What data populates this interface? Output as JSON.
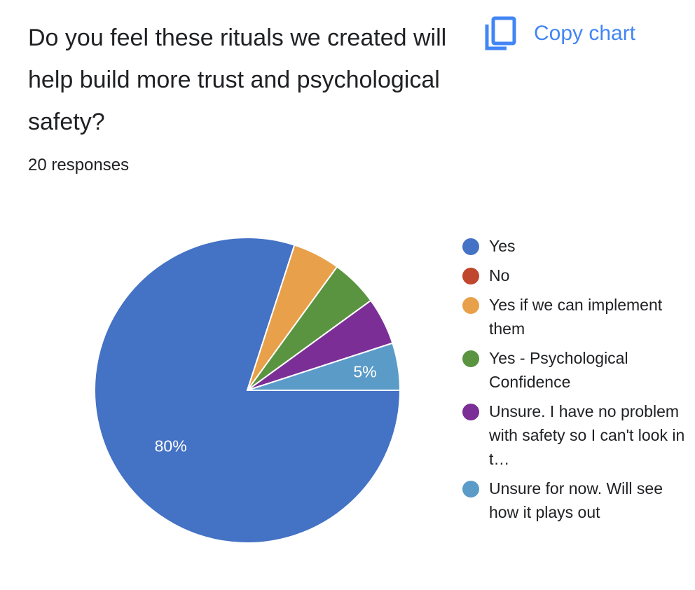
{
  "header": {
    "question": "Do you feel these rituals we created will help build more trust and psychological safety?",
    "responses": "20 responses",
    "copy_label": "Copy chart",
    "copy_icon": "copy-icon"
  },
  "chart_data": {
    "type": "pie",
    "title": "Do you feel these rituals we created will help build more trust and psychological safety?",
    "total_responses": 20,
    "legend_position": "right",
    "slices": [
      {
        "label": "Yes",
        "value": 80,
        "color": "#4472c4",
        "data_label": "80%"
      },
      {
        "label": "No",
        "value": 0,
        "color": "#c0472d",
        "data_label": ""
      },
      {
        "label": "Yes if we can implement them",
        "value": 5,
        "color": "#e8a04a",
        "data_label": ""
      },
      {
        "label": "Yes - Psychological Confidence",
        "value": 5,
        "color": "#5a9440",
        "data_label": ""
      },
      {
        "label": "Unsure. I have no problem with safety so I can't look in t…",
        "value": 5,
        "color": "#7b2f96",
        "data_label": ""
      },
      {
        "label": "Unsure for now. Will see how it plays out",
        "value": 5,
        "color": "#5b9bc8",
        "data_label": "5%"
      }
    ]
  }
}
